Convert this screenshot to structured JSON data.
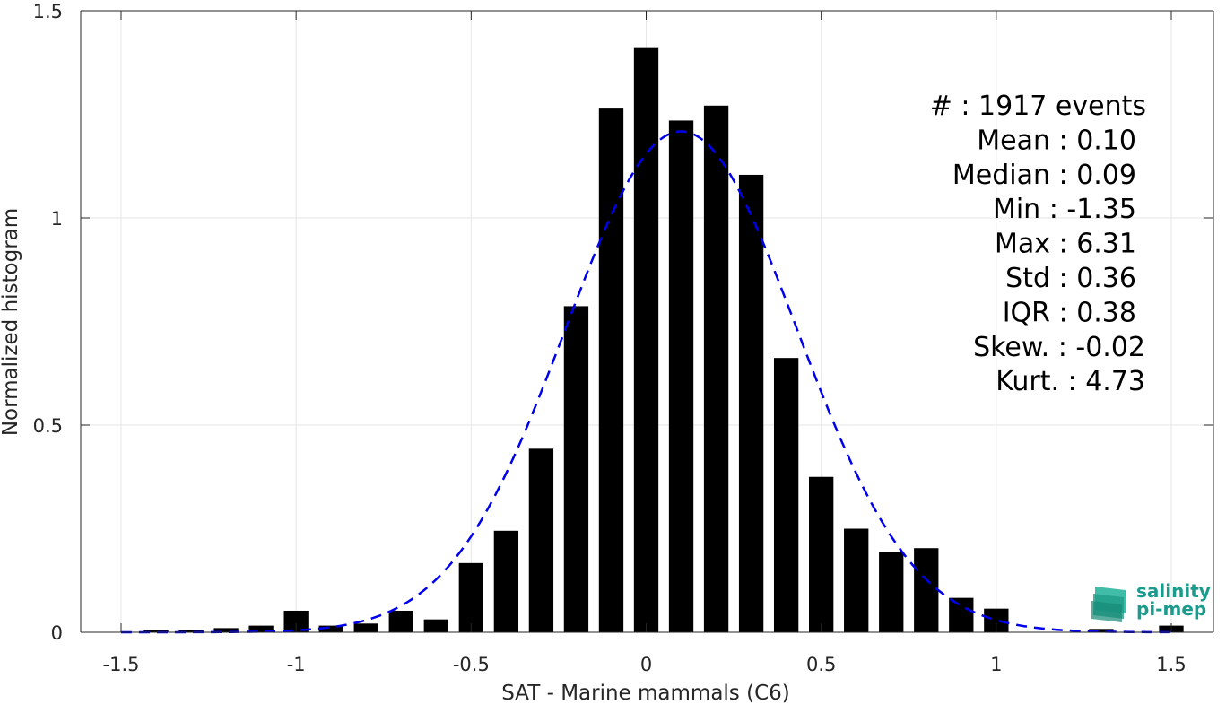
{
  "chart_data": {
    "type": "bar",
    "xlabel": "SAT - Marine mammals (C6)",
    "ylabel": "Normalized histogram",
    "xlim": [
      -1.5,
      1.5
    ],
    "ylim": [
      0,
      1.5
    ],
    "xticks": [
      -1.5,
      -1,
      -0.5,
      0,
      0.5,
      1,
      1.5
    ],
    "xtick_labels": [
      "-1.5",
      "-1",
      "-0.5",
      "0",
      "0.5",
      "1",
      "1.5"
    ],
    "yticks": [
      0,
      0.5,
      1,
      1.5
    ],
    "ytick_labels": [
      "0",
      "0.5",
      "1",
      "1.5"
    ],
    "grid": true,
    "bar_color": "#000000",
    "bar_width": 0.07,
    "bins": [
      {
        "x": -1.4,
        "value": 0.005
      },
      {
        "x": -1.3,
        "value": 0.005
      },
      {
        "x": -1.2,
        "value": 0.01
      },
      {
        "x": -1.1,
        "value": 0.016
      },
      {
        "x": -1.0,
        "value": 0.052
      },
      {
        "x": -0.9,
        "value": 0.016
      },
      {
        "x": -0.8,
        "value": 0.021
      },
      {
        "x": -0.7,
        "value": 0.052
      },
      {
        "x": -0.6,
        "value": 0.031
      },
      {
        "x": -0.5,
        "value": 0.167
      },
      {
        "x": -0.4,
        "value": 0.245
      },
      {
        "x": -0.3,
        "value": 0.443
      },
      {
        "x": -0.2,
        "value": 0.787
      },
      {
        "x": -0.1,
        "value": 1.266
      },
      {
        "x": 0.0,
        "value": 1.412
      },
      {
        "x": 0.1,
        "value": 1.235
      },
      {
        "x": 0.2,
        "value": 1.271
      },
      {
        "x": 0.3,
        "value": 1.104
      },
      {
        "x": 0.4,
        "value": 0.662
      },
      {
        "x": 0.5,
        "value": 0.375
      },
      {
        "x": 0.6,
        "value": 0.25
      },
      {
        "x": 0.7,
        "value": 0.193
      },
      {
        "x": 0.8,
        "value": 0.203
      },
      {
        "x": 0.9,
        "value": 0.083
      },
      {
        "x": 1.0,
        "value": 0.057
      },
      {
        "x": 1.3,
        "value": 0.008
      },
      {
        "x": 1.5,
        "value": 0.016
      }
    ],
    "fit_curve": {
      "style": "dashed",
      "color": "#0000ee",
      "mean": 0.1,
      "std": 0.33,
      "x_range": [
        -1.5,
        1.5
      ]
    },
    "stats": [
      {
        "label": "#  : 1917 events"
      },
      {
        "label": "Mean : 0.10"
      },
      {
        "label": "Median : 0.09"
      },
      {
        "label": "Min : -1.35"
      },
      {
        "label": "Max : 6.31"
      },
      {
        "label": "Std : 0.36"
      },
      {
        "label": "IQR : 0.38"
      },
      {
        "label": "Skew. : -0.02"
      },
      {
        "label": "Kurt. : 4.73"
      }
    ]
  },
  "logo": {
    "line1": "salinity",
    "line2": "pi-mep",
    "color": "#1a9b8c"
  }
}
